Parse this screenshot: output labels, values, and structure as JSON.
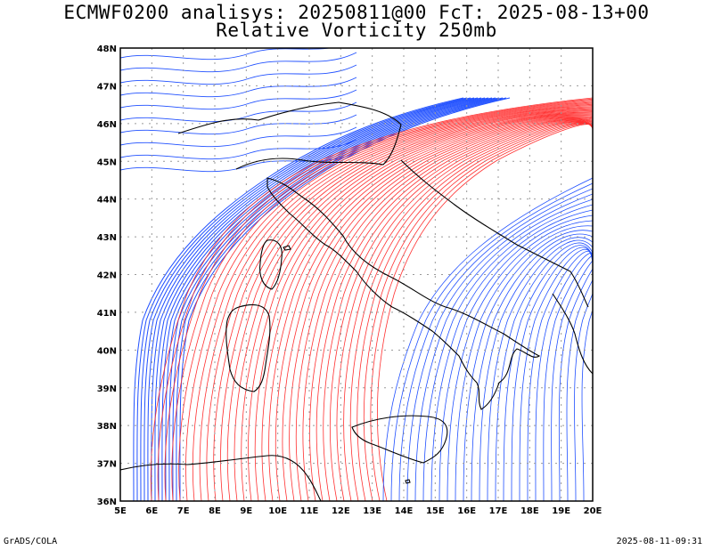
{
  "header": {
    "title": "ECMWF0200 analisys: 20250811@00 FcT: 2025-08-13+00",
    "subtitle": "Relative Vorticity 250mb"
  },
  "footer": {
    "left": "GrADS/COLA",
    "right": "2025-08-11-09:31"
  },
  "map": {
    "lat_labels": [
      "48N",
      "47N",
      "46N",
      "45N",
      "44N",
      "43N",
      "42N",
      "41N",
      "40N",
      "39N",
      "38N",
      "37N",
      "36N"
    ],
    "lon_labels": [
      "5E",
      "6E",
      "7E",
      "8E",
      "9E",
      "10E",
      "11E",
      "12E",
      "13E",
      "14E",
      "15E",
      "16E",
      "17E",
      "18E",
      "19E",
      "20E"
    ],
    "lat_range": [
      36,
      48
    ],
    "lon_range": [
      5,
      20
    ],
    "colors": {
      "positive_contours": "#ff3030",
      "negative_contours": "#2050ff",
      "coastlines": "#000000",
      "grid": "#999999"
    }
  }
}
